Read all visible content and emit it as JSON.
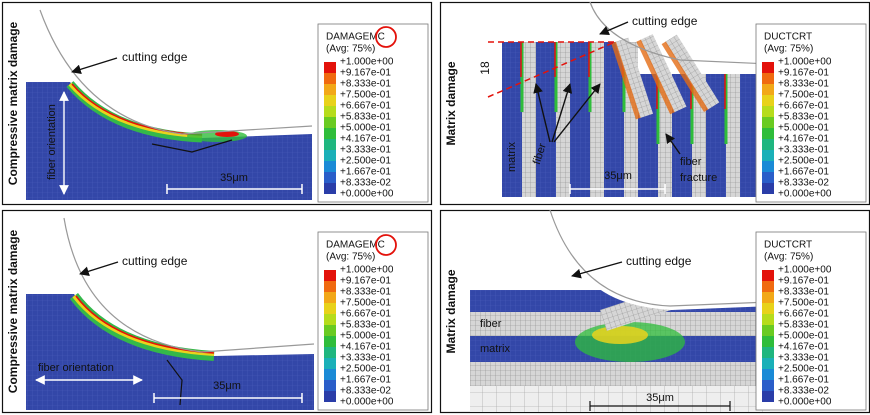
{
  "panels": [
    {
      "side_label": "Compressive matrix damage",
      "legend": {
        "title": "DAMAGEMC",
        "subtitle": "(Avg: 75%)",
        "levels": [
          "+1.000e+00",
          "+9.167e-01",
          "+8.333e-01",
          "+7.500e-01",
          "+6.667e-01",
          "+5.833e-01",
          "+5.000e-01",
          "+4.167e-01",
          "+3.333e-01",
          "+2.500e-01",
          "+1.667e-01",
          "+8.333e-02",
          "+0.000e+00"
        ]
      },
      "annotations": [
        "cutting edge",
        "fiber orientation",
        "35μm"
      ]
    },
    {
      "side_label": "Matrix damage",
      "legend": {
        "title": "DUCTCRT",
        "subtitle": "(Avg: 75%)",
        "levels": [
          "+1.000e+00",
          "+9.167e-01",
          "+8.333e-01",
          "+7.500e-01",
          "+6.667e-01",
          "+5.833e-01",
          "+5.000e-01",
          "+4.167e-01",
          "+3.333e-01",
          "+2.500e-01",
          "+1.667e-01",
          "+8.333e-02",
          "+0.000e+00"
        ]
      },
      "annotations": [
        "cutting edge",
        "18",
        "matrix",
        "fiber",
        "fiber",
        "fracture",
        "35μm"
      ]
    },
    {
      "side_label": "Compressive matrix damage",
      "legend": {
        "title": "DAMAGEMC",
        "subtitle": "(Avg: 75%)",
        "levels": [
          "+1.000e+00",
          "+9.167e-01",
          "+8.333e-01",
          "+7.500e-01",
          "+6.667e-01",
          "+5.833e-01",
          "+5.000e-01",
          "+4.167e-01",
          "+3.333e-01",
          "+2.500e-01",
          "+1.667e-01",
          "+8.333e-02",
          "+0.000e+00"
        ]
      },
      "annotations": [
        "cutting edge",
        "fiber orientation",
        "35μm"
      ]
    },
    {
      "side_label": "Matrix damage",
      "legend": {
        "title": "DUCTCRT",
        "subtitle": "(Avg: 75%)",
        "levels": [
          "+1.000e+00",
          "+9.167e-01",
          "+8.333e-01",
          "+7.500e-01",
          "+6.667e-01",
          "+5.833e-01",
          "+5.000e-01",
          "+4.167e-01",
          "+3.333e-01",
          "+2.500e-01",
          "+1.667e-01",
          "+8.333e-02",
          "+0.000e+00"
        ]
      },
      "annotations": [
        "cutting edge",
        "fiber",
        "matrix",
        "35μm"
      ]
    }
  ]
}
